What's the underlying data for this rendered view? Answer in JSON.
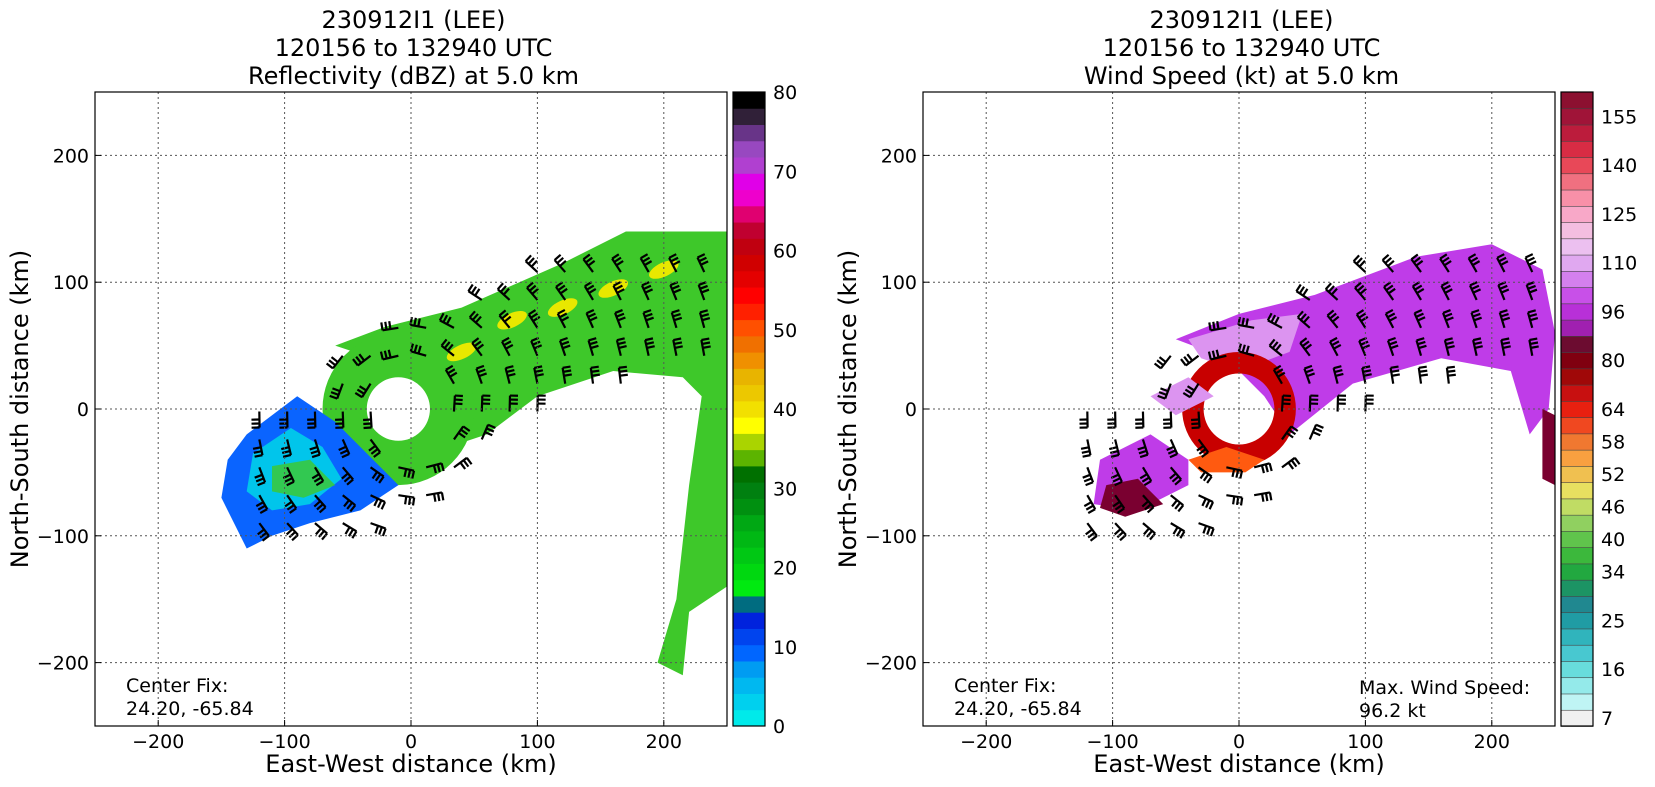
{
  "panels": [
    {
      "title_line1": "230912I1 (LEE)",
      "title_line2": "120156 to 132940 UTC",
      "title_line3": "Reflectivity (dBZ) at 5.0 km",
      "center_fix_label": "Center Fix:",
      "center_fix_value": "24.20, -65.84",
      "max_wind_label": "",
      "max_wind_value": ""
    },
    {
      "title_line1": "230912I1 (LEE)",
      "title_line2": "120156 to 132940 UTC",
      "title_line3": "Wind Speed (kt) at 5.0 km",
      "center_fix_label": "Center Fix:",
      "center_fix_value": "24.20, -65.84",
      "max_wind_label": "Max. Wind Speed:",
      "max_wind_value": "96.2 kt"
    }
  ],
  "chart_data": [
    {
      "type": "heatmap",
      "title": "230912I1 (LEE) 120156 to 132940 UTC Reflectivity (dBZ) at 5.0 km",
      "xlabel": "East-West distance (km)",
      "ylabel": "North-South distance (km)",
      "xlim": [
        -250,
        250
      ],
      "ylim": [
        -250,
        250
      ],
      "xticks": [
        -200,
        -100,
        0,
        100,
        200
      ],
      "yticks": [
        -200,
        -100,
        0,
        100,
        200
      ],
      "xtick_labels": [
        "−200",
        "−100",
        "0",
        "100",
        "200"
      ],
      "ytick_labels": [
        "−200",
        "−100",
        "0",
        "100",
        "200"
      ],
      "grid": true,
      "colorbar": {
        "min": 0,
        "max": 80,
        "tick_values": [
          0,
          10,
          20,
          30,
          40,
          50,
          60,
          70,
          80
        ],
        "tick_labels": [
          "0",
          "10",
          "20",
          "30",
          "40",
          "50",
          "60",
          "70",
          "80"
        ],
        "colors": [
          "#00eaea",
          "#00d0ee",
          "#00b8f0",
          "#009cf2",
          "#0066ff",
          "#0044ee",
          "#0022dd",
          "#006c80",
          "#00ea10",
          "#00d810",
          "#00c814",
          "#00b814",
          "#00a814",
          "#009010",
          "#008010",
          "#007000",
          "#5cb400",
          "#aad400",
          "#ffff00",
          "#f2e000",
          "#ecc800",
          "#e8b400",
          "#f09000",
          "#f07000",
          "#ff5000",
          "#ff2000",
          "#ff0000",
          "#e40000",
          "#d00000",
          "#c00010",
          "#c00030",
          "#e00070",
          "#ee00cc",
          "#e000e8",
          "#b040d0",
          "#9848c0",
          "#683488",
          "#302038",
          "#000000"
        ]
      },
      "scene": {
        "background_field": "#3ec82a",
        "high_band_color": "#e8e800",
        "weak_echo_color": "#0a64ff",
        "light_echo_color": "#00d6e8"
      }
    },
    {
      "type": "heatmap",
      "title": "230912I1 (LEE) 120156 to 132940 UTC Wind Speed (kt) at 5.0 km",
      "xlabel": "East-West distance (km)",
      "ylabel": "North-South distance (km)",
      "xlim": [
        -250,
        250
      ],
      "ylim": [
        -250,
        250
      ],
      "xticks": [
        -200,
        -100,
        0,
        100,
        200
      ],
      "yticks": [
        -200,
        -100,
        0,
        100,
        200
      ],
      "xtick_labels": [
        "−200",
        "−100",
        "0",
        "100",
        "200"
      ],
      "ytick_labels": [
        "−200",
        "−100",
        "0",
        "100",
        "200"
      ],
      "grid": true,
      "max_wind_kt": 96.2,
      "colorbar": {
        "tick_labels": [
          "7",
          "16",
          "25",
          "34",
          "40",
          "46",
          "52",
          "58",
          "64",
          "80",
          "96",
          "110",
          "125",
          "140",
          "155"
        ],
        "tick_index": [
          0,
          3,
          6,
          9,
          11,
          13,
          15,
          17,
          19,
          22,
          25,
          28,
          31,
          34,
          37
        ],
        "colors": [
          "#f0f0f0",
          "#bff4f4",
          "#94eaea",
          "#68dcdc",
          "#48c8d0",
          "#30b4bc",
          "#209ca4",
          "#208890",
          "#1c9464",
          "#22a840",
          "#3cb83c",
          "#60c44c",
          "#90d060",
          "#c0dc64",
          "#e8e060",
          "#f0c050",
          "#f8a040",
          "#f07830",
          "#f04820",
          "#e82010",
          "#c81010",
          "#a00808",
          "#800010",
          "#6c0c30",
          "#a020b0",
          "#b830d8",
          "#c850e8",
          "#d480ee",
          "#e0a8f0",
          "#ecc0f0",
          "#f4bee0",
          "#f8a8c8",
          "#f890a8",
          "#f07080",
          "#e84858",
          "#d82c44",
          "#bc1c3c",
          "#a01438",
          "#8c1030"
        ]
      },
      "scene": {
        "background_field": "#bf3ce8",
        "inner_field": "#dc94f0",
        "eyewall_color": "#c80000",
        "eyewall_hot_color": "#ff5a10",
        "dark_rain_color": "#7a0030"
      }
    }
  ]
}
